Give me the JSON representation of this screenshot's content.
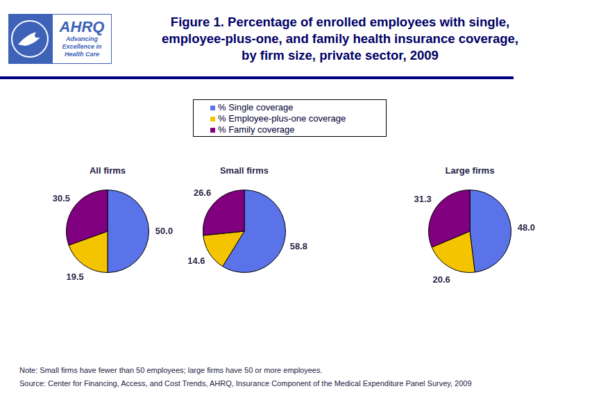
{
  "header": {
    "logo": {
      "name": "AHRQ",
      "tagline": [
        "Advancing",
        "Excellence in",
        "Health Care"
      ]
    },
    "title": [
      "Figure 1. Percentage of enrolled employees with single,",
      "employee-plus-one, and family health insurance coverage,",
      "by firm size, private sector, 2009"
    ]
  },
  "chart_data": [
    {
      "type": "pie",
      "title": "All firms",
      "categories": [
        "% Single coverage",
        "% Employee-plus-one coverage",
        "% Family coverage"
      ],
      "values": [
        50.0,
        19.5,
        30.5
      ],
      "value_labels": [
        "50.0",
        "19.5",
        "30.5"
      ],
      "colors": [
        "#5b73e8",
        "#f5c400",
        "#800080"
      ],
      "data_labels": true
    },
    {
      "type": "pie",
      "title": "Small firms",
      "categories": [
        "% Single coverage",
        "% Employee-plus-one coverage",
        "% Family coverage"
      ],
      "values": [
        58.8,
        14.6,
        26.6
      ],
      "colors": [
        "#5b73e8",
        "#f5c400",
        "#800080"
      ],
      "data_labels": true
    },
    {
      "type": "pie",
      "title": "Large firms",
      "categories": [
        "% Single coverage",
        "% Employee-plus-one coverage",
        "% Family coverage"
      ],
      "values": [
        48.0,
        20.6,
        31.3
      ],
      "value_labels": [
        "48.0",
        "20.6",
        "31.3"
      ],
      "colors": [
        "#5b73e8",
        "#f5c400",
        "#800080"
      ],
      "data_labels": true
    }
  ],
  "notes": {
    "note": "Note: Small firms have fewer than 50 employees; large firms have 50 or more employees.",
    "source": "Source: Center for Financing, Access, and Cost Trends, AHRQ, Insurance Component of the Medical Expenditure Panel Survey, 2009"
  }
}
